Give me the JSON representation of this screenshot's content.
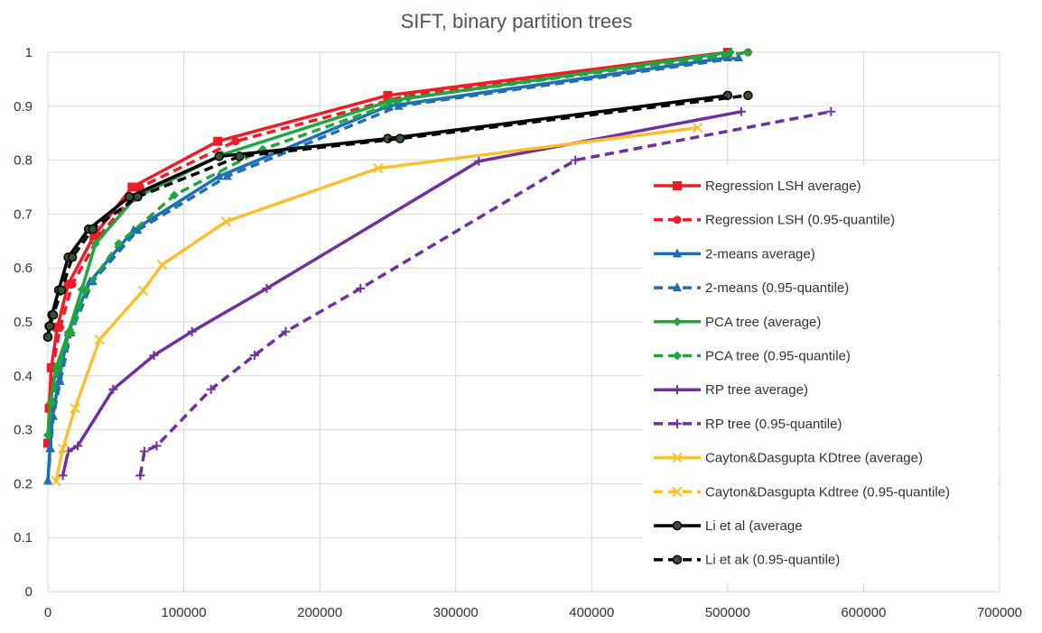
{
  "chart_data": {
    "type": "line",
    "title": "SIFT, binary partition trees",
    "xlabel": "",
    "ylabel": "",
    "xlim": [
      0,
      700000
    ],
    "ylim": [
      0,
      1
    ],
    "x_ticks": [
      0,
      100000,
      200000,
      300000,
      400000,
      500000,
      600000,
      700000
    ],
    "x_tick_labels": [
      "0",
      "100000",
      "200000",
      "300000",
      "400000",
      "500000",
      "600000",
      "700000"
    ],
    "y_ticks": [
      0,
      0.1,
      0.2,
      0.3,
      0.4,
      0.5,
      0.6,
      0.7,
      0.8,
      0.9,
      1
    ],
    "y_tick_labels": [
      "0",
      "0.1",
      "0.2",
      "0.3",
      "0.4",
      "0.5",
      "0.6",
      "0.7",
      "0.8",
      "0.9",
      "1"
    ],
    "grid": true,
    "legend_position": "right",
    "series": [
      {
        "name": "Regression LSH average)",
        "color": "#ee1c25",
        "dash": false,
        "marker": "square",
        "points": [
          [
            0,
            0.275
          ],
          [
            1000,
            0.34
          ],
          [
            2500,
            0.415
          ],
          [
            7000,
            0.49
          ],
          [
            15000,
            0.57
          ],
          [
            34000,
            0.66
          ],
          [
            62000,
            0.75
          ],
          [
            125000,
            0.835
          ],
          [
            250000,
            0.92
          ],
          [
            500000,
            1.0
          ]
        ]
      },
      {
        "name": "Regression LSH (0.95-quantile)",
        "color": "#ee1c25",
        "dash": true,
        "marker": "circle",
        "points": [
          [
            0,
            0.275
          ],
          [
            1500,
            0.34
          ],
          [
            3500,
            0.415
          ],
          [
            9000,
            0.49
          ],
          [
            18000,
            0.57
          ],
          [
            38000,
            0.66
          ],
          [
            68000,
            0.75
          ],
          [
            138000,
            0.835
          ],
          [
            265000,
            0.92
          ],
          [
            515000,
            1.0
          ]
        ]
      },
      {
        "name": "2-means average)",
        "color": "#1f6fb5",
        "dash": false,
        "marker": "triangle",
        "points": [
          [
            0,
            0.205
          ],
          [
            1500,
            0.265
          ],
          [
            3500,
            0.325
          ],
          [
            8000,
            0.39
          ],
          [
            15000,
            0.48
          ],
          [
            31000,
            0.575
          ],
          [
            63000,
            0.67
          ],
          [
            126000,
            0.77
          ],
          [
            250000,
            0.9
          ],
          [
            500000,
            0.99
          ]
        ]
      },
      {
        "name": "2-means (0.95-quantile)",
        "color": "#1f6fb5",
        "dash": true,
        "marker": "triangle",
        "points": [
          [
            0,
            0.205
          ],
          [
            2000,
            0.265
          ],
          [
            4000,
            0.325
          ],
          [
            9000,
            0.39
          ],
          [
            17000,
            0.48
          ],
          [
            33000,
            0.575
          ],
          [
            66000,
            0.67
          ],
          [
            132000,
            0.77
          ],
          [
            258000,
            0.9
          ],
          [
            508000,
            0.99
          ]
        ]
      },
      {
        "name": "PCA tree (average)",
        "color": "#1fa63f",
        "dash": false,
        "marker": "diamond",
        "points": [
          [
            0,
            0.29
          ],
          [
            2000,
            0.35
          ],
          [
            6000,
            0.415
          ],
          [
            15000,
            0.48
          ],
          [
            25000,
            0.56
          ],
          [
            35000,
            0.645
          ],
          [
            64000,
            0.73
          ],
          [
            128000,
            0.81
          ],
          [
            252000,
            0.91
          ],
          [
            502000,
            1.0
          ]
        ]
      },
      {
        "name": "PCA tree (0.95-quantile)",
        "color": "#1fa63f",
        "dash": true,
        "marker": "diamond",
        "points": [
          [
            0,
            0.29
          ],
          [
            3000,
            0.35
          ],
          [
            8000,
            0.415
          ],
          [
            17000,
            0.48
          ],
          [
            28000,
            0.56
          ],
          [
            52000,
            0.645
          ],
          [
            93000,
            0.735
          ],
          [
            158000,
            0.82
          ],
          [
            265000,
            0.915
          ],
          [
            515000,
            1.0
          ]
        ]
      },
      {
        "name": "RP tree average)",
        "color": "#7030a0",
        "dash": false,
        "marker": "plus",
        "points": [
          [
            11000,
            0.215
          ],
          [
            15000,
            0.26
          ],
          [
            22000,
            0.27
          ],
          [
            48000,
            0.375
          ],
          [
            78000,
            0.438
          ],
          [
            106000,
            0.482
          ],
          [
            161000,
            0.562
          ],
          [
            317000,
            0.798
          ],
          [
            510000,
            0.89
          ]
        ]
      },
      {
        "name": "RP tree (0.95-quantile)",
        "color": "#7030a0",
        "dash": true,
        "marker": "plus",
        "points": [
          [
            68000,
            0.215
          ],
          [
            71000,
            0.26
          ],
          [
            80000,
            0.27
          ],
          [
            120000,
            0.375
          ],
          [
            152000,
            0.438
          ],
          [
            175000,
            0.482
          ],
          [
            230000,
            0.562
          ],
          [
            388000,
            0.8
          ],
          [
            576000,
            0.89
          ]
        ]
      },
      {
        "name": "Cayton&Dasgupta KDtree (average)",
        "color": "#fdbf2d",
        "dash": false,
        "marker": "x",
        "points": [
          [
            6000,
            0.205
          ],
          [
            11000,
            0.265
          ],
          [
            20000,
            0.34
          ],
          [
            38000,
            0.467
          ],
          [
            70000,
            0.558
          ],
          [
            84000,
            0.606
          ],
          [
            131000,
            0.686
          ],
          [
            243000,
            0.785
          ],
          [
            478000,
            0.86
          ]
        ]
      },
      {
        "name": "Cayton&Dasgupta Kdtree (0.95-quantile)",
        "color": "#fdbf2d",
        "dash": true,
        "marker": "x",
        "points": []
      },
      {
        "name": "Li et al (average",
        "color": "#000000",
        "dash": false,
        "marker": "circle-dark",
        "points": [
          [
            0,
            0.472
          ],
          [
            1000,
            0.492
          ],
          [
            3000,
            0.513
          ],
          [
            8000,
            0.559
          ],
          [
            15000,
            0.62
          ],
          [
            30000,
            0.672
          ],
          [
            60000,
            0.732
          ],
          [
            126000,
            0.807
          ],
          [
            250000,
            0.84
          ],
          [
            500000,
            0.92
          ]
        ]
      },
      {
        "name": "Li et ak (0.95-quantile)",
        "color": "#000000",
        "dash": true,
        "marker": "circle-dark",
        "points": [
          [
            0,
            0.472
          ],
          [
            1500,
            0.492
          ],
          [
            4000,
            0.513
          ],
          [
            10000,
            0.559
          ],
          [
            18000,
            0.62
          ],
          [
            33000,
            0.672
          ],
          [
            66000,
            0.732
          ],
          [
            141000,
            0.807
          ],
          [
            259000,
            0.84
          ],
          [
            515000,
            0.92
          ]
        ]
      }
    ]
  }
}
